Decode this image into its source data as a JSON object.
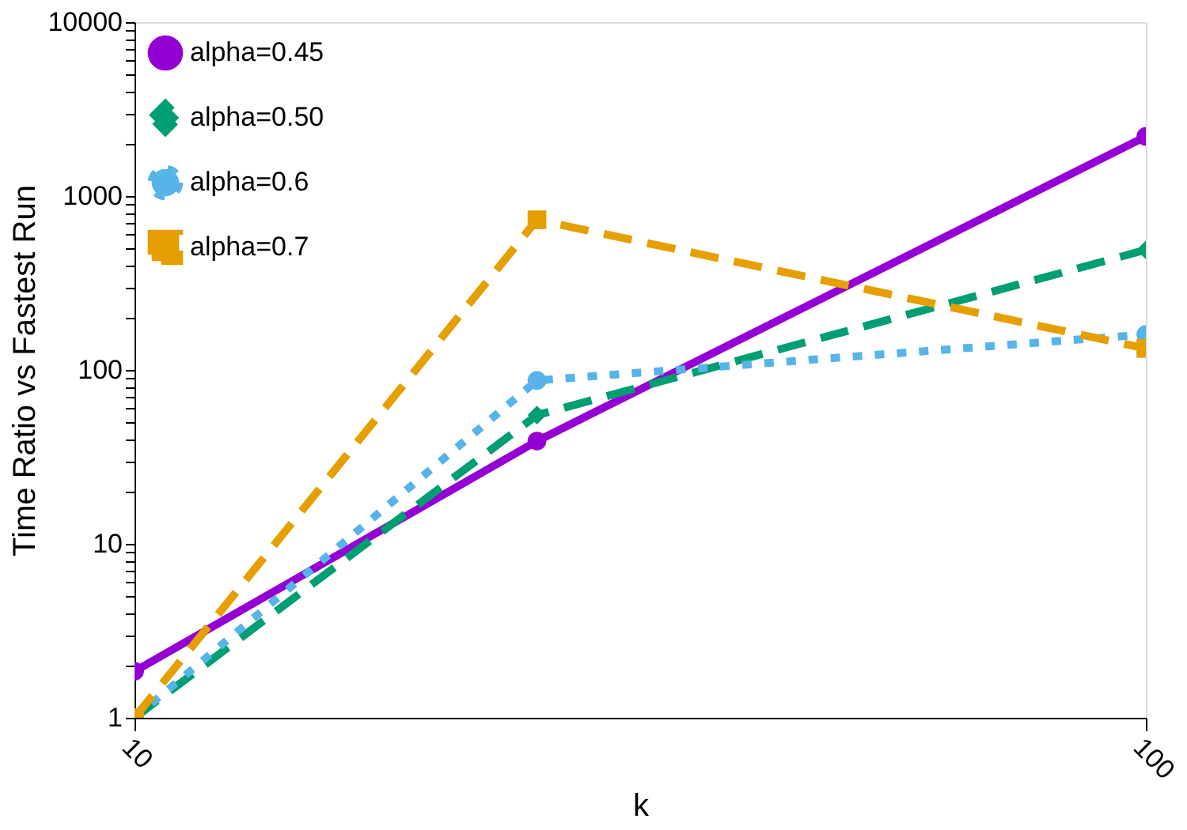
{
  "chart_data": {
    "type": "line",
    "xlabel": "k",
    "ylabel": "Time Ratio vs Fastest Run",
    "log": "xy",
    "legend": "top left",
    "grid": false,
    "xlim": [
      10,
      100
    ],
    "xticks": [
      10,
      100
    ],
    "ylim": [
      1,
      10000
    ],
    "yticks": [
      1,
      {
        "value": 2,
        "label": null
      },
      {
        "value": 3,
        "label": null
      },
      {
        "value": 4,
        "label": null
      },
      {
        "value": 5,
        "label": null
      },
      {
        "value": 6,
        "label": null
      },
      {
        "value": 7,
        "label": null
      },
      {
        "value": 8,
        "label": null
      },
      {
        "value": 9,
        "label": null
      },
      10,
      {
        "value": 20,
        "label": null
      },
      {
        "value": 30,
        "label": null
      },
      {
        "value": 40,
        "label": null
      },
      {
        "value": 50,
        "label": null
      },
      {
        "value": 60,
        "label": null
      },
      {
        "value": 70,
        "label": null
      },
      {
        "value": 80,
        "label": null
      },
      {
        "value": 90,
        "label": null
      },
      100,
      {
        "value": 200,
        "label": null
      },
      {
        "value": 300,
        "label": null
      },
      {
        "value": 400,
        "label": null
      },
      {
        "value": 500,
        "label": null
      },
      {
        "value": 600,
        "label": null
      },
      {
        "value": 700,
        "label": null
      },
      {
        "value": 800,
        "label": null
      },
      {
        "value": 900,
        "label": null
      },
      1000,
      {
        "value": 2000,
        "label": null
      },
      {
        "value": 3000,
        "label": null
      },
      {
        "value": 4000,
        "label": null
      },
      {
        "value": 5000,
        "label": null
      },
      {
        "value": 6000,
        "label": null
      },
      {
        "value": 7000,
        "label": null
      },
      {
        "value": 8000,
        "label": null
      },
      {
        "value": 9000,
        "label": null
      },
      10000
    ],
    "x": [
      10,
      25,
      100
    ],
    "series": [
      {
        "name": "alpha=0.45",
        "color": "#9400d3",
        "values": [
          1.85,
          39,
          2200
        ],
        "line_style": "solid",
        "marker": "circle"
      },
      {
        "name": "alpha=0.50",
        "color": "#009e73",
        "values": [
          1,
          55,
          490
        ],
        "line_style": "dashed",
        "marker": "diamond"
      },
      {
        "name": "alpha=0.6",
        "color": "#56b4e9",
        "values": [
          1,
          87,
          160
        ],
        "line_style": "dotted",
        "marker": "circle"
      },
      {
        "name": "alpha=0.7",
        "color": "#e69f00",
        "values": [
          1,
          730,
          133
        ],
        "line_style": "dashed",
        "marker": "square"
      }
    ]
  }
}
